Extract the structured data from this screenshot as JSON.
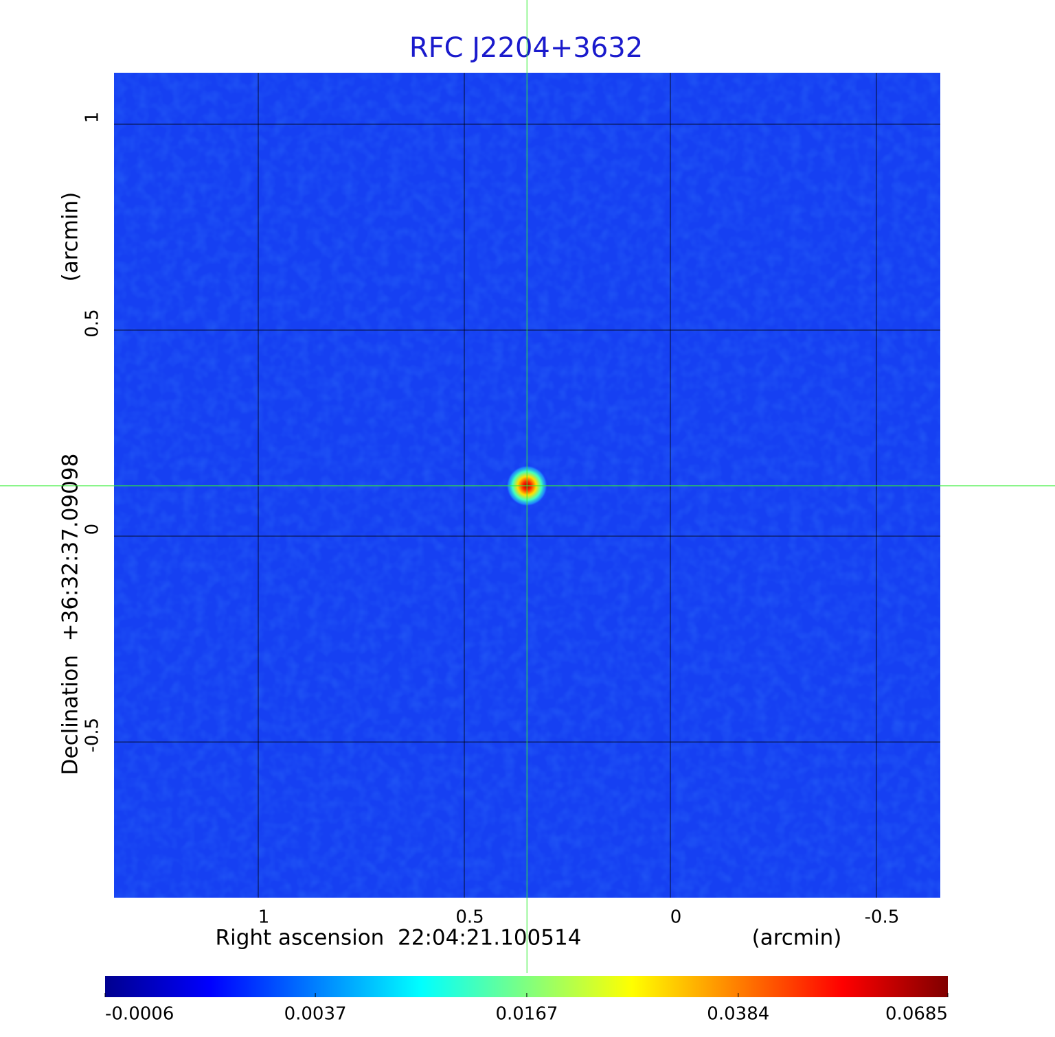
{
  "chart_data": {
    "type": "image",
    "title": "RFC J2204+3632",
    "xlabel": "Right ascension  22:04:21.100514",
    "xunit": "(arcmin)",
    "ylabel": "Declination  +36:32:37.09098",
    "yunit": "(arcmin)",
    "xlim": [
      1.35,
      -0.655
    ],
    "xticks": [
      1.0,
      0.5,
      0.0,
      -0.5
    ],
    "ylim": [
      -0.878,
      1.125
    ],
    "yticks": [
      -0.5,
      0.0,
      0.5,
      1.0
    ],
    "grid": true,
    "colormap": "jet",
    "colorbar_scale": "sqrt",
    "clim": [
      -0.0006,
      0.0685
    ],
    "colorbar_ticks": [
      -0.0006,
      0.0037,
      0.0167,
      0.0384,
      0.0685
    ],
    "source": {
      "x": 0.348,
      "y": 0.122,
      "peak": 0.0685
    }
  }
}
